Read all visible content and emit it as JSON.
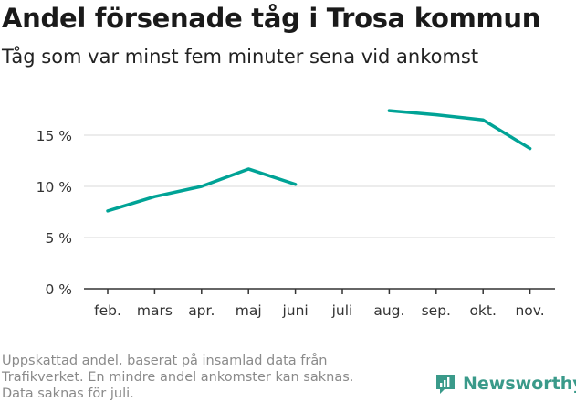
{
  "title": "Andel försenade tåg i Trosa kommun",
  "subtitle": "Tåg som var minst fem minuter sena vid ankomst",
  "footer": {
    "lines": [
      "Uppskattad andel, baserat på insamlad data från",
      "Trafikverket. En mindre andel ankomster kan saknas.",
      "Data saknas för juli."
    ]
  },
  "brand": {
    "name": "Newsworthy",
    "color": "#3a9a8a",
    "icon": "newsworthy-logo-icon"
  },
  "colors": {
    "line": "#00a396",
    "grid": "#d9d9d9",
    "axis": "#333333"
  },
  "chart_data": {
    "type": "line",
    "categories": [
      "feb.",
      "mars",
      "apr.",
      "maj",
      "juni",
      "juli",
      "aug.",
      "sep.",
      "okt.",
      "nov."
    ],
    "series": [
      {
        "values": [
          7.6,
          9.0,
          10.0,
          11.7,
          10.2,
          null,
          17.4,
          17.0,
          16.5,
          13.7
        ]
      }
    ],
    "yticks": [
      0,
      5,
      10,
      15
    ],
    "ytick_labels": [
      "0 %",
      "5 %",
      "10 %",
      "15 %"
    ],
    "ylim": [
      0,
      20
    ],
    "grid": true,
    "xlabel": "",
    "ylabel": ""
  }
}
